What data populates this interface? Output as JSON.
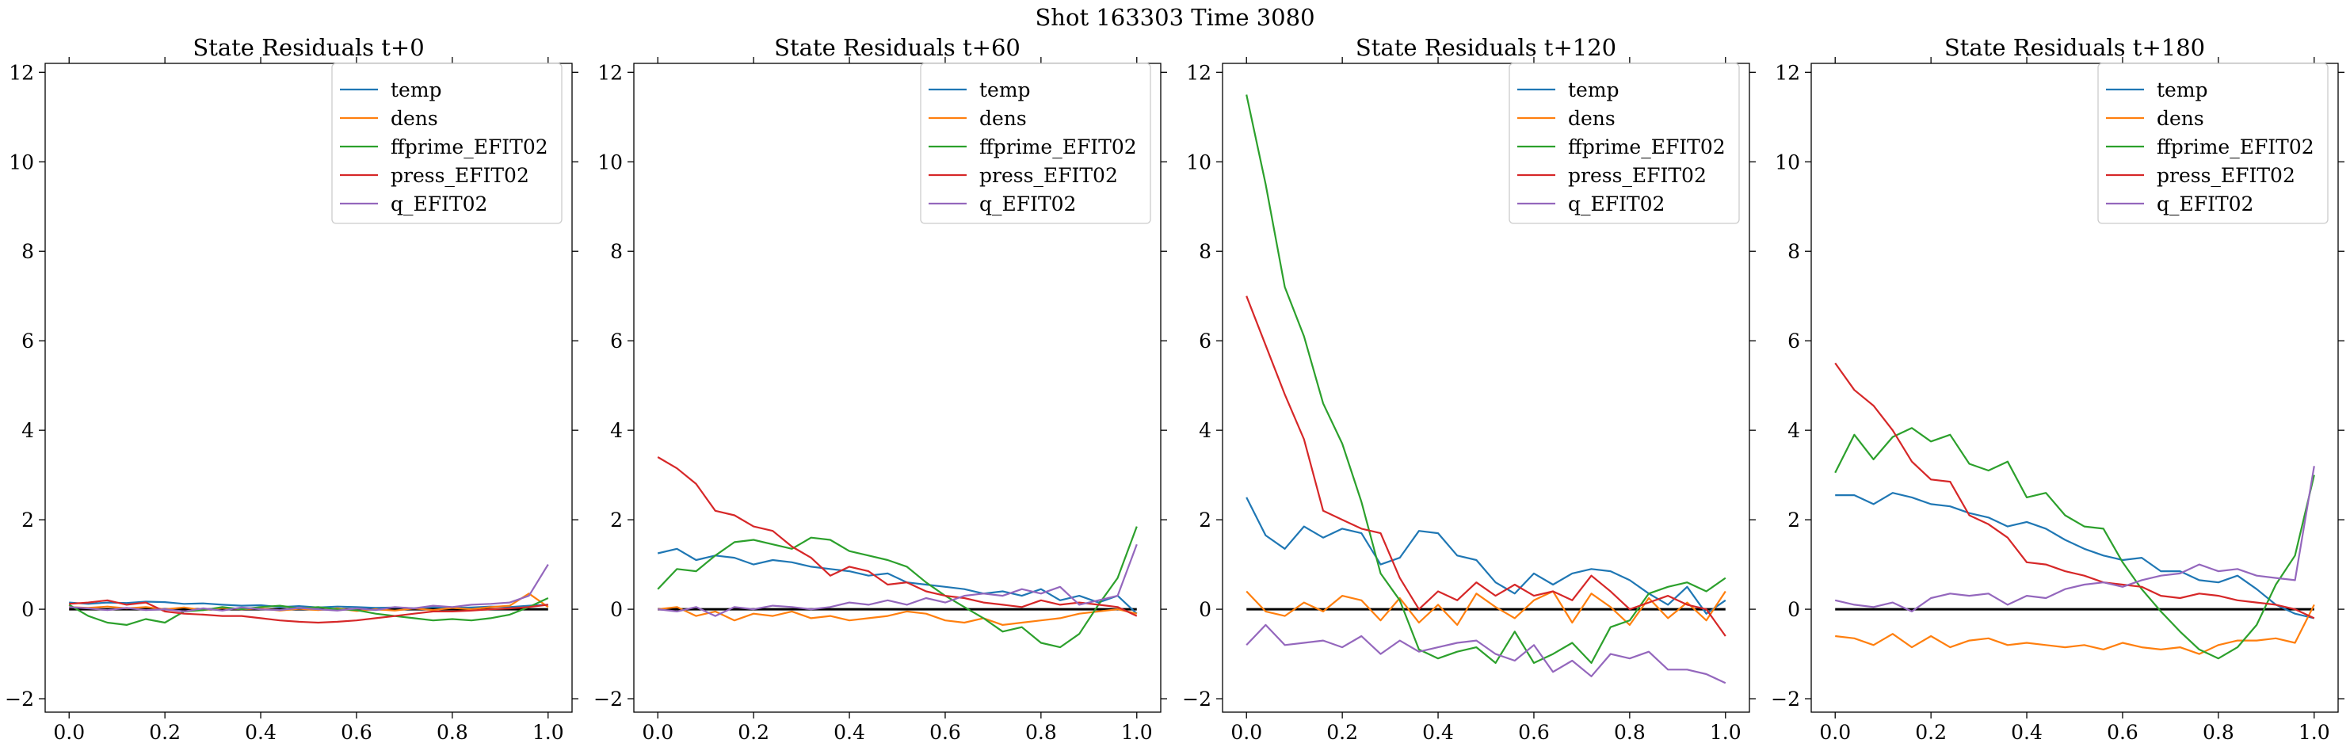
{
  "figure": {
    "suptitle": "Shot 163303   Time 3080"
  },
  "colors": {
    "temp": "#1f77b4",
    "dens": "#ff7f0e",
    "ffprime_EFIT02": "#2ca02c",
    "press_EFIT02": "#d62728",
    "q_EFIT02": "#9467bd",
    "zero_line": "#000000"
  },
  "chart_data": [
    {
      "type": "line",
      "title": "State Residuals t+0",
      "xlim": [
        -0.05,
        1.05
      ],
      "ylim": [
        -2.3,
        12.2
      ],
      "xticks": [
        0.0,
        0.2,
        0.4,
        0.6,
        0.8,
        1.0
      ],
      "xtick_labels": [
        "0.0",
        "0.2",
        "0.4",
        "0.6",
        "0.8",
        "1.0"
      ],
      "yticks": [
        -2,
        0,
        2,
        4,
        6,
        8,
        10,
        12
      ],
      "ytick_labels": [
        "−2",
        "0",
        "2",
        "4",
        "6",
        "8",
        "10",
        "12"
      ],
      "legend_position": "top-right",
      "grid": false,
      "x": [
        0,
        0.04,
        0.08,
        0.12,
        0.16,
        0.2,
        0.24,
        0.28,
        0.32,
        0.36,
        0.4,
        0.44,
        0.48,
        0.52,
        0.56,
        0.6,
        0.64,
        0.68,
        0.72,
        0.76,
        0.8,
        0.84,
        0.88,
        0.92,
        0.96,
        1.0
      ],
      "series": [
        {
          "name": "temp",
          "values": [
            0.15,
            0.12,
            0.15,
            0.14,
            0.17,
            0.16,
            0.12,
            0.13,
            0.1,
            0.08,
            0.09,
            0.05,
            0.07,
            0.04,
            0.06,
            0.05,
            0.03,
            0.04,
            0.02,
            0.05,
            0.03,
            0.04,
            0.06,
            0.05,
            0.08,
            0.1
          ]
        },
        {
          "name": "dens",
          "values": [
            0.05,
            0.03,
            0.06,
            0.02,
            0.05,
            0.0,
            0.04,
            -0.02,
            0.03,
            0.0,
            0.02,
            -0.03,
            0.01,
            -0.02,
            0.02,
            -0.04,
            0.0,
            -0.03,
            0.02,
            -0.02,
            0.03,
            0.0,
            0.05,
            0.08,
            0.35,
            0.05
          ]
        },
        {
          "name": "ffprime_EFIT02",
          "values": [
            0.1,
            -0.15,
            -0.3,
            -0.35,
            -0.22,
            -0.3,
            -0.05,
            -0.02,
            0.05,
            0.0,
            0.05,
            0.08,
            0.02,
            0.05,
            0.0,
            -0.02,
            -0.1,
            -0.15,
            -0.2,
            -0.25,
            -0.22,
            -0.25,
            -0.2,
            -0.12,
            0.05,
            0.25
          ]
        },
        {
          "name": "press_EFIT02",
          "values": [
            0.12,
            0.15,
            0.2,
            0.1,
            0.15,
            -0.05,
            -0.1,
            -0.12,
            -0.15,
            -0.15,
            -0.2,
            -0.25,
            -0.28,
            -0.3,
            -0.28,
            -0.25,
            -0.2,
            -0.15,
            -0.1,
            -0.05,
            -0.05,
            -0.03,
            0.0,
            0.02,
            0.05,
            0.1
          ]
        },
        {
          "name": "q_EFIT02",
          "values": [
            0.05,
            0.02,
            -0.02,
            0.03,
            -0.02,
            0.0,
            -0.05,
            0.02,
            -0.03,
            0.04,
            0.0,
            -0.02,
            0.03,
            0.0,
            -0.03,
            0.02,
            -0.02,
            0.05,
            0.02,
            0.08,
            0.05,
            0.1,
            0.12,
            0.15,
            0.3,
            1.0
          ]
        }
      ]
    },
    {
      "type": "line",
      "title": "State Residuals t+60",
      "xlim": [
        -0.05,
        1.05
      ],
      "ylim": [
        -2.3,
        12.2
      ],
      "xticks": [
        0.0,
        0.2,
        0.4,
        0.6,
        0.8,
        1.0
      ],
      "xtick_labels": [
        "0.0",
        "0.2",
        "0.4",
        "0.6",
        "0.8",
        "1.0"
      ],
      "yticks": [
        -2,
        0,
        2,
        4,
        6,
        8,
        10,
        12
      ],
      "ytick_labels": [
        "−2",
        "0",
        "2",
        "4",
        "6",
        "8",
        "10",
        "12"
      ],
      "legend_position": "top-right",
      "grid": false,
      "x": [
        0,
        0.04,
        0.08,
        0.12,
        0.16,
        0.2,
        0.24,
        0.28,
        0.32,
        0.36,
        0.4,
        0.44,
        0.48,
        0.52,
        0.56,
        0.6,
        0.64,
        0.68,
        0.72,
        0.76,
        0.8,
        0.84,
        0.88,
        0.92,
        0.96,
        1.0
      ],
      "series": [
        {
          "name": "temp",
          "values": [
            1.25,
            1.35,
            1.1,
            1.2,
            1.15,
            1.0,
            1.1,
            1.05,
            0.95,
            0.9,
            0.85,
            0.75,
            0.8,
            0.6,
            0.55,
            0.5,
            0.45,
            0.35,
            0.4,
            0.3,
            0.45,
            0.2,
            0.3,
            0.15,
            0.3,
            -0.1
          ]
        },
        {
          "name": "dens",
          "values": [
            0.0,
            0.05,
            -0.15,
            -0.05,
            -0.25,
            -0.1,
            -0.15,
            -0.05,
            -0.2,
            -0.15,
            -0.25,
            -0.2,
            -0.15,
            -0.05,
            -0.1,
            -0.25,
            -0.3,
            -0.2,
            -0.35,
            -0.3,
            -0.25,
            -0.2,
            -0.1,
            -0.05,
            0.0,
            -0.1
          ]
        },
        {
          "name": "ffprime_EFIT02",
          "values": [
            0.45,
            0.9,
            0.85,
            1.2,
            1.5,
            1.55,
            1.45,
            1.35,
            1.6,
            1.55,
            1.3,
            1.2,
            1.1,
            0.95,
            0.6,
            0.3,
            0.05,
            -0.2,
            -0.5,
            -0.4,
            -0.75,
            -0.85,
            -0.55,
            0.1,
            0.7,
            1.85
          ]
        },
        {
          "name": "press_EFIT02",
          "values": [
            3.4,
            3.15,
            2.8,
            2.2,
            2.1,
            1.85,
            1.75,
            1.4,
            1.15,
            0.75,
            0.95,
            0.85,
            0.55,
            0.6,
            0.4,
            0.3,
            0.25,
            0.15,
            0.1,
            0.05,
            0.2,
            0.1,
            0.15,
            0.1,
            0.05,
            -0.15
          ]
        },
        {
          "name": "q_EFIT02",
          "values": [
            0.0,
            -0.05,
            0.05,
            -0.15,
            0.05,
            0.0,
            0.08,
            0.05,
            0.0,
            0.05,
            0.15,
            0.1,
            0.2,
            0.1,
            0.25,
            0.15,
            0.3,
            0.35,
            0.3,
            0.45,
            0.35,
            0.5,
            0.1,
            0.2,
            0.3,
            1.45
          ]
        }
      ]
    },
    {
      "type": "line",
      "title": "State Residuals t+120",
      "xlim": [
        -0.05,
        1.05
      ],
      "ylim": [
        -2.3,
        12.2
      ],
      "xticks": [
        0.0,
        0.2,
        0.4,
        0.6,
        0.8,
        1.0
      ],
      "xtick_labels": [
        "0.0",
        "0.2",
        "0.4",
        "0.6",
        "0.8",
        "1.0"
      ],
      "yticks": [
        -2,
        0,
        2,
        4,
        6,
        8,
        10,
        12
      ],
      "ytick_labels": [
        "−2",
        "0",
        "2",
        "4",
        "6",
        "8",
        "10",
        "12"
      ],
      "legend_position": "top-right",
      "grid": false,
      "x": [
        0,
        0.04,
        0.08,
        0.12,
        0.16,
        0.2,
        0.24,
        0.28,
        0.32,
        0.36,
        0.4,
        0.44,
        0.48,
        0.52,
        0.56,
        0.6,
        0.64,
        0.68,
        0.72,
        0.76,
        0.8,
        0.84,
        0.88,
        0.92,
        0.96,
        1.0
      ],
      "series": [
        {
          "name": "temp",
          "values": [
            2.5,
            1.65,
            1.35,
            1.85,
            1.6,
            1.8,
            1.7,
            1.0,
            1.15,
            1.75,
            1.7,
            1.2,
            1.1,
            0.6,
            0.35,
            0.8,
            0.55,
            0.8,
            0.9,
            0.85,
            0.65,
            0.35,
            0.1,
            0.5,
            -0.1,
            0.2
          ]
        },
        {
          "name": "dens",
          "values": [
            0.4,
            -0.05,
            -0.15,
            0.15,
            -0.05,
            0.3,
            0.2,
            -0.25,
            0.25,
            -0.3,
            0.1,
            -0.35,
            0.35,
            0.05,
            -0.2,
            0.2,
            0.4,
            -0.3,
            0.35,
            0.05,
            -0.35,
            0.25,
            -0.2,
            0.15,
            -0.25,
            0.4
          ]
        },
        {
          "name": "ffprime_EFIT02",
          "values": [
            11.5,
            9.5,
            7.2,
            6.1,
            4.6,
            3.7,
            2.4,
            0.8,
            0.2,
            -0.9,
            -1.1,
            -0.95,
            -0.85,
            -1.2,
            -0.5,
            -1.2,
            -1.0,
            -0.75,
            -1.2,
            -0.4,
            -0.25,
            0.35,
            0.5,
            0.6,
            0.4,
            0.7
          ]
        },
        {
          "name": "press_EFIT02",
          "values": [
            7.0,
            5.9,
            4.8,
            3.8,
            2.2,
            2.0,
            1.8,
            1.7,
            0.7,
            0.0,
            0.4,
            0.2,
            0.6,
            0.3,
            0.55,
            0.3,
            0.4,
            0.2,
            0.75,
            0.4,
            0.0,
            0.15,
            0.3,
            0.1,
            0.0,
            -0.6
          ]
        },
        {
          "name": "q_EFIT02",
          "values": [
            -0.8,
            -0.35,
            -0.8,
            -0.75,
            -0.7,
            -0.85,
            -0.6,
            -1.0,
            -0.7,
            -0.95,
            -0.85,
            -0.75,
            -0.7,
            -1.0,
            -1.15,
            -0.8,
            -1.4,
            -1.15,
            -1.5,
            -1.0,
            -1.1,
            -0.95,
            -1.35,
            -1.35,
            -1.45,
            -1.65
          ]
        }
      ]
    },
    {
      "type": "line",
      "title": "State Residuals t+180",
      "xlim": [
        -0.05,
        1.05
      ],
      "ylim": [
        -2.3,
        12.2
      ],
      "xticks": [
        0.0,
        0.2,
        0.4,
        0.6,
        0.8,
        1.0
      ],
      "xtick_labels": [
        "0.0",
        "0.2",
        "0.4",
        "0.6",
        "0.8",
        "1.0"
      ],
      "yticks": [
        -2,
        0,
        2,
        4,
        6,
        8,
        10,
        12
      ],
      "ytick_labels": [
        "−2",
        "0",
        "2",
        "4",
        "6",
        "8",
        "10",
        "12"
      ],
      "legend_position": "top-right",
      "grid": false,
      "x": [
        0,
        0.04,
        0.08,
        0.12,
        0.16,
        0.2,
        0.24,
        0.28,
        0.32,
        0.36,
        0.4,
        0.44,
        0.48,
        0.52,
        0.56,
        0.6,
        0.64,
        0.68,
        0.72,
        0.76,
        0.8,
        0.84,
        0.88,
        0.92,
        0.96,
        1.0
      ],
      "series": [
        {
          "name": "temp",
          "values": [
            2.55,
            2.55,
            2.35,
            2.6,
            2.5,
            2.35,
            2.3,
            2.15,
            2.05,
            1.85,
            1.95,
            1.8,
            1.55,
            1.35,
            1.2,
            1.1,
            1.15,
            0.85,
            0.85,
            0.65,
            0.6,
            0.75,
            0.45,
            0.1,
            -0.1,
            -0.2
          ]
        },
        {
          "name": "dens",
          "values": [
            -0.6,
            -0.65,
            -0.8,
            -0.55,
            -0.85,
            -0.6,
            -0.85,
            -0.7,
            -0.65,
            -0.8,
            -0.75,
            -0.8,
            -0.85,
            -0.8,
            -0.9,
            -0.75,
            -0.85,
            -0.9,
            -0.85,
            -1.0,
            -0.8,
            -0.7,
            -0.7,
            -0.65,
            -0.75,
            0.1
          ]
        },
        {
          "name": "ffprime_EFIT02",
          "values": [
            3.05,
            3.9,
            3.35,
            3.85,
            4.05,
            3.75,
            3.9,
            3.25,
            3.1,
            3.3,
            2.5,
            2.6,
            2.1,
            1.85,
            1.8,
            1.05,
            0.45,
            -0.05,
            -0.5,
            -0.9,
            -1.1,
            -0.85,
            -0.35,
            0.55,
            1.2,
            3.0
          ]
        },
        {
          "name": "press_EFIT02",
          "values": [
            5.5,
            4.9,
            4.55,
            4.0,
            3.3,
            2.9,
            2.85,
            2.1,
            1.9,
            1.6,
            1.05,
            1.0,
            0.85,
            0.75,
            0.6,
            0.55,
            0.5,
            0.3,
            0.25,
            0.35,
            0.3,
            0.2,
            0.15,
            0.1,
            0.0,
            -0.2
          ]
        },
        {
          "name": "q_EFIT02",
          "values": [
            0.2,
            0.1,
            0.05,
            0.15,
            -0.05,
            0.25,
            0.35,
            0.3,
            0.35,
            0.1,
            0.3,
            0.25,
            0.45,
            0.55,
            0.6,
            0.5,
            0.65,
            0.75,
            0.8,
            1.0,
            0.85,
            0.9,
            0.75,
            0.7,
            0.65,
            3.2
          ]
        }
      ]
    }
  ]
}
